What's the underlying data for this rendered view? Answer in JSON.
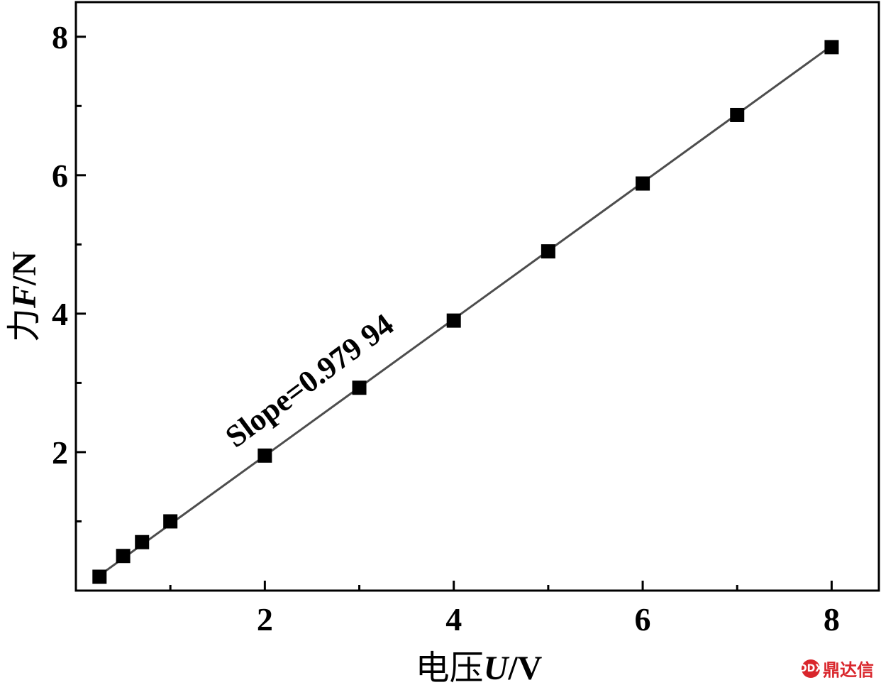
{
  "chart_data": {
    "type": "scatter",
    "x": [
      0.25,
      0.5,
      0.7,
      1.0,
      2.0,
      3.0,
      4.0,
      5.0,
      6.0,
      7.0,
      8.0
    ],
    "y": [
      0.2,
      0.5,
      0.7,
      1.0,
      1.95,
      2.93,
      3.9,
      4.9,
      5.88,
      6.87,
      7.85
    ],
    "fit": {
      "type": "linear",
      "slope": 0.97994,
      "x_range": [
        0.25,
        8.0
      ],
      "y_range": [
        0.22,
        7.87
      ]
    },
    "annotation": "Slope=0.979 94",
    "xlabel": {
      "prefix": "电压",
      "symbol": "U",
      "unit": "/V"
    },
    "ylabel": {
      "prefix": "力",
      "symbol": "F",
      "unit": "/N"
    },
    "xlim": [
      0.0,
      8.5
    ],
    "ylim": [
      0.0,
      8.5
    ],
    "x_ticks": [
      2,
      4,
      6,
      8
    ],
    "y_ticks": [
      2,
      4,
      6,
      8
    ],
    "x_minor_ticks": [
      1,
      3,
      5,
      7
    ],
    "y_minor_ticks": [
      1,
      3,
      5,
      7
    ],
    "grid": false,
    "marker": "square",
    "colors": {
      "marker": "#000000",
      "line": "#4d4d4d"
    }
  },
  "watermark": {
    "text": "鼎达信",
    "badge": "DDX"
  }
}
